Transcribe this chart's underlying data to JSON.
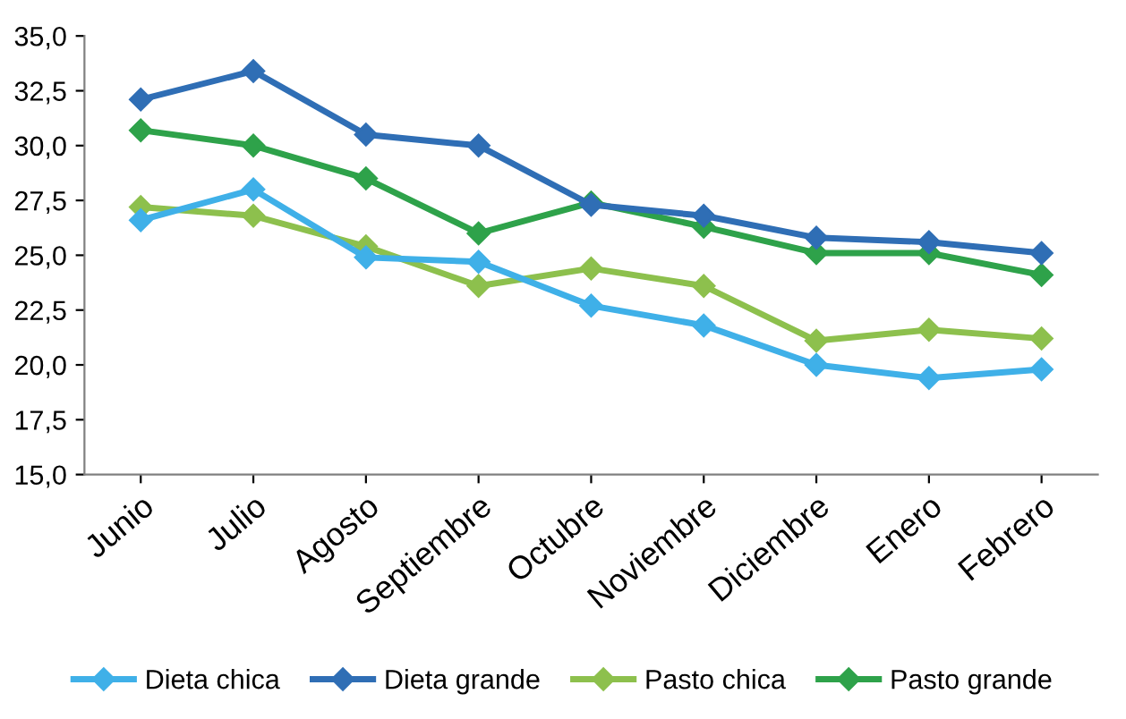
{
  "chart_data": {
    "type": "line",
    "categories": [
      "Junio",
      "Julio",
      "Agosto",
      "Septiembre",
      "Octubre",
      "Noviembre",
      "Diciembre",
      "Enero",
      "Febrero"
    ],
    "series": [
      {
        "name": "Dieta chica",
        "color": "#3fb0e8",
        "values": [
          26.6,
          28.0,
          24.9,
          24.7,
          22.7,
          21.8,
          20.0,
          19.4,
          19.8
        ]
      },
      {
        "name": "Dieta grande",
        "color": "#2f6eb5",
        "values": [
          32.1,
          33.4,
          30.5,
          30.0,
          27.3,
          26.8,
          25.8,
          25.6,
          25.1
        ]
      },
      {
        "name": "Pasto chica",
        "color": "#8dc04d",
        "values": [
          27.2,
          26.8,
          25.4,
          23.6,
          24.4,
          23.6,
          21.1,
          21.6,
          21.2
        ]
      },
      {
        "name": "Pasto grande",
        "color": "#2ea24a",
        "values": [
          30.7,
          30.0,
          28.5,
          26.0,
          27.4,
          26.3,
          25.1,
          25.1,
          24.1
        ]
      }
    ],
    "ylim": [
      15,
      35
    ],
    "yticks": [
      {
        "value": 15,
        "label": "15,0"
      },
      {
        "value": 17.5,
        "label": "17,5"
      },
      {
        "value": 20,
        "label": "20,0"
      },
      {
        "value": 22.5,
        "label": "22,5"
      },
      {
        "value": 25,
        "label": "25,0"
      },
      {
        "value": 27.5,
        "label": "27,5"
      },
      {
        "value": 30,
        "label": "30,0"
      },
      {
        "value": 32.5,
        "label": "32,5"
      },
      {
        "value": 35,
        "label": "35,0"
      }
    ],
    "marker": "diamond",
    "line_style": "solid",
    "legend": "bottom",
    "grid": false
  }
}
